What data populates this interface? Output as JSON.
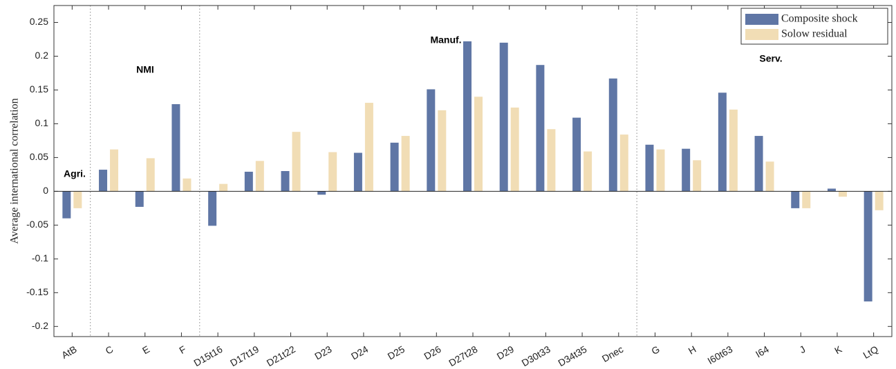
{
  "chart_data": {
    "type": "bar",
    "y_label": "Average international correlation",
    "categories": [
      "AtB",
      "C",
      "E",
      "F",
      "D15t16",
      "D17t19",
      "D21t22",
      "D23",
      "D24",
      "D25",
      "D26",
      "D27t28",
      "D29",
      "D30t33",
      "D34t35",
      "Dnec",
      "G",
      "H",
      "I60t63",
      "I64",
      "J",
      "K",
      "LtQ"
    ],
    "series": [
      {
        "name": "Composite shock",
        "color": "#5f76a5",
        "values": [
          -0.04,
          0.032,
          -0.023,
          0.129,
          -0.051,
          0.029,
          0.03,
          -0.005,
          0.057,
          0.072,
          0.151,
          0.222,
          0.22,
          0.187,
          0.109,
          0.167,
          0.069,
          0.063,
          0.146,
          0.082,
          -0.025,
          0.004,
          -0.163
        ]
      },
      {
        "name": "Solow residual",
        "color": "#f1ddb5",
        "values": [
          -0.025,
          0.062,
          0.049,
          0.019,
          0.011,
          0.045,
          0.088,
          0.058,
          0.131,
          0.082,
          0.12,
          0.14,
          0.124,
          0.092,
          0.059,
          0.084,
          0.062,
          0.046,
          0.121,
          0.044,
          -0.025,
          -0.008,
          -0.028
        ]
      }
    ],
    "annotations": [
      "Agri.",
      "NMI",
      "Manuf.",
      "Serv."
    ],
    "ylim": [
      -0.215,
      0.275
    ],
    "yticks": [
      -0.2,
      -0.15,
      -0.1,
      -0.05,
      0,
      0.05,
      0.1,
      0.15,
      0.2,
      0.25
    ],
    "grid": false,
    "legend": "upper right"
  }
}
